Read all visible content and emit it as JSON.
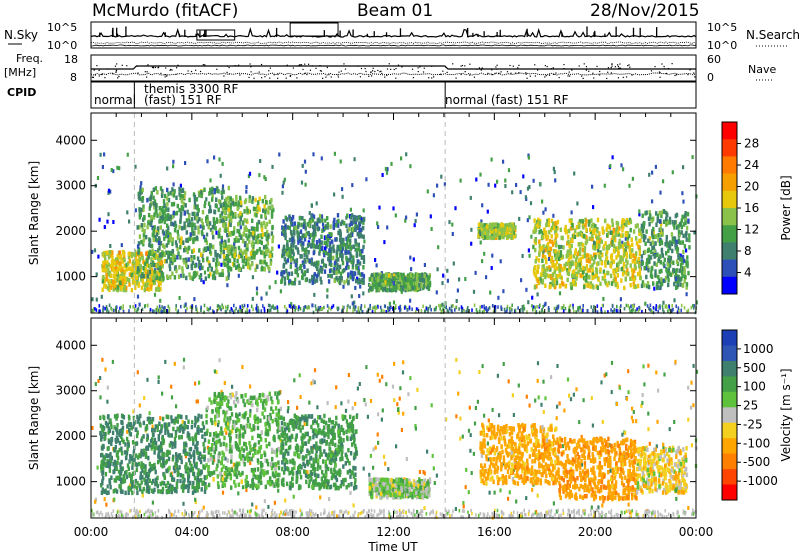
{
  "header": {
    "station": "McMurdo (fitACF)",
    "beam": "Beam 01",
    "date": "28/Nov/2015"
  },
  "summary_panels": {
    "nsky": {
      "label": "N.Sky",
      "ticks": [
        "10^5",
        "10^0"
      ],
      "right_label": "N.Search",
      "right_ticks": [
        "10^5",
        "10^0"
      ]
    },
    "freq": {
      "label_line1": "Freq.",
      "label_line2": "[MHz]",
      "ticks": [
        "18",
        "8"
      ],
      "right_label": "Nave",
      "right_ticks": [
        "60",
        "0"
      ]
    },
    "cpid": {
      "label": "CPID",
      "segments": [
        {
          "text": "normal",
          "start_hour": 0.0
        },
        {
          "text": "themis 3300 RF",
          "start_hour": 1.72
        },
        {
          "text": "(fast) 151 RF",
          "start_hour": 1.72
        },
        {
          "text": "normal (fast) 151 RF",
          "start_hour": 14.05
        }
      ],
      "dividers_hours": [
        1.72,
        14.05
      ]
    }
  },
  "chart_data": [
    {
      "type": "heatmap",
      "parameter": "power",
      "ylabel": "Slant Range [km]",
      "x_range_hours": [
        0,
        24
      ],
      "ylim": [
        200,
        4600
      ],
      "yticks": [
        1000,
        2000,
        3000,
        4000
      ],
      "colorbar": {
        "label": "Power [dB]",
        "ticks": [
          "4",
          "8",
          "12",
          "16",
          "20",
          "24",
          "28"
        ],
        "colors": [
          "#0000ff",
          "#2d4fb8",
          "#3e7f6e",
          "#43a047",
          "#8bc34a",
          "#e8c80c",
          "#f5a000",
          "#ff7a00",
          "#ff3a00",
          "#ff0000"
        ]
      },
      "echo_regions": [
        {
          "t": [
            0.4,
            2.8
          ],
          "range_km": [
            750,
            1600
          ],
          "power_db": 18
        },
        {
          "t": [
            1.8,
            5.5
          ],
          "range_km": [
            1000,
            3000
          ],
          "power_db": 12
        },
        {
          "t": [
            5.2,
            7.2
          ],
          "range_km": [
            1200,
            2800
          ],
          "power_db": 14
        },
        {
          "t": [
            7.5,
            10.8
          ],
          "range_km": [
            900,
            2400
          ],
          "power_db": 10
        },
        {
          "t": [
            11.0,
            13.4
          ],
          "range_km": [
            750,
            1100
          ],
          "power_db": 13
        },
        {
          "t": [
            15.3,
            16.8
          ],
          "range_km": [
            1900,
            2200
          ],
          "power_db": 16
        },
        {
          "t": [
            17.5,
            21.8
          ],
          "range_km": [
            800,
            2300
          ],
          "power_db": 17
        },
        {
          "t": [
            21.8,
            23.7
          ],
          "range_km": [
            800,
            2500
          ],
          "power_db": 12
        }
      ]
    },
    {
      "type": "heatmap",
      "parameter": "velocity",
      "ylabel": "Slant Range [km]",
      "x_range_hours": [
        0,
        24
      ],
      "ylim": [
        200,
        4600
      ],
      "yticks": [
        1000,
        2000,
        3000,
        4000
      ],
      "colorbar": {
        "label": "Velocity [m s⁻¹]",
        "ticks": [
          "1000",
          "500",
          "100",
          "25",
          "-25",
          "-100",
          "-500",
          "-1000"
        ],
        "colors": [
          "#1d3fb5",
          "#2f55b5",
          "#3e7f6e",
          "#43a047",
          "#5fc23c",
          "#bfbfbf",
          "#f4d020",
          "#ffa500",
          "#ff7f00",
          "#ff4500",
          "#ff0000"
        ]
      },
      "echo_regions": [
        {
          "t": [
            0.3,
            4.5
          ],
          "range_km": [
            800,
            2500
          ],
          "velocity_ms": 250
        },
        {
          "t": [
            4.5,
            7.5
          ],
          "range_km": [
            900,
            3000
          ],
          "velocity_ms": 100
        },
        {
          "t": [
            7.5,
            10.5
          ],
          "range_km": [
            900,
            2500
          ],
          "velocity_ms": 200
        },
        {
          "t": [
            11.0,
            13.4
          ],
          "range_km": [
            700,
            1100
          ],
          "velocity_ms": 50
        },
        {
          "t": [
            15.4,
            18.5
          ],
          "range_km": [
            1000,
            2300
          ],
          "velocity_ms": -150
        },
        {
          "t": [
            18.5,
            21.6
          ],
          "range_km": [
            650,
            2000
          ],
          "velocity_ms": -200
        },
        {
          "t": [
            21.6,
            23.6
          ],
          "range_km": [
            800,
            1800
          ],
          "velocity_ms": -50
        }
      ]
    }
  ],
  "x_axis": {
    "tick_labels": [
      "00:00",
      "04:00",
      "08:00",
      "12:00",
      "16:00",
      "20:00",
      "00:00"
    ],
    "label": "Time UT"
  }
}
